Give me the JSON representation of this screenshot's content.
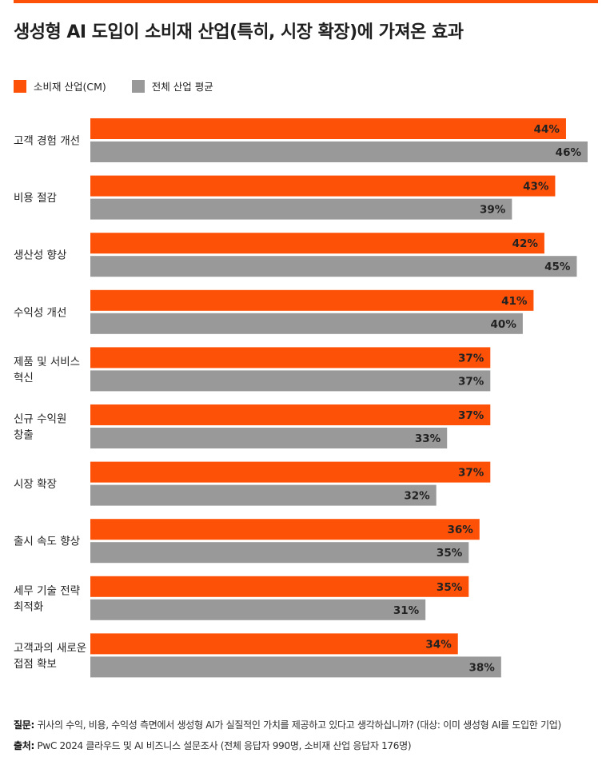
{
  "title": "생성형 AI 도입이 소비재 산업(특히, 시장 확장)에 가져온 효과",
  "legend": {
    "cm": {
      "label": "소비재 산업(CM)",
      "color": "#fd5108"
    },
    "all": {
      "label": "전체 산업 평균",
      "color": "#999999"
    }
  },
  "chart_data": {
    "type": "bar",
    "orientation": "horizontal",
    "categories": [
      [
        "고객 경험 개선"
      ],
      [
        "비용 절감"
      ],
      [
        "생산성 향상"
      ],
      [
        "수익성 개선"
      ],
      [
        "제품 및 서비스",
        "혁신"
      ],
      [
        "신규 수익원",
        "창출"
      ],
      [
        "시장 확장"
      ],
      [
        "출시 속도 향상"
      ],
      [
        "세무 기술 전략",
        "최적화"
      ],
      [
        "고객과의 새로운",
        "접점 확보"
      ]
    ],
    "series": [
      {
        "name": "소비재 산업(CM)",
        "color": "#fd5108",
        "values": [
          44,
          43,
          42,
          41,
          37,
          37,
          37,
          36,
          35,
          34
        ]
      },
      {
        "name": "전체 산업 평균",
        "color": "#999999",
        "values": [
          46,
          39,
          45,
          40,
          37,
          33,
          32,
          35,
          31,
          38
        ]
      }
    ],
    "value_suffix": "%",
    "xlim": [
      0,
      46
    ],
    "grid": false,
    "legend_position": "top-left"
  },
  "footnotes": {
    "question_label": "질문:",
    "question_text": " 귀사의 수익, 비용, 수익성 측면에서 생성형 AI가 실질적인 가치를 제공하고 있다고 생각하십니까? (대상: 이미 생성형 AI를 도입한 기업)",
    "source_label": "출처:",
    "source_text": " PwC 2024 클라우드 및 AI 비즈니스 설문조사 (전체 응답자 990명, 소비재 산업 응답자 176명)"
  }
}
